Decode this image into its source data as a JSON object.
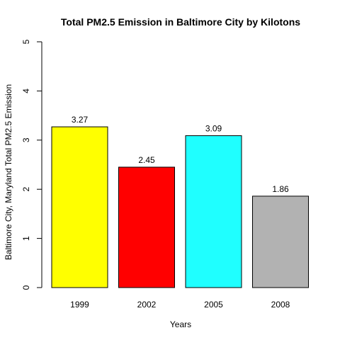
{
  "chart_data": {
    "type": "bar",
    "title": "Total PM2.5 Emission in Baltimore City by Kilotons",
    "xlabel": "Years",
    "ylabel": "Baltimore City, Maryland Total PM2.5 Emission",
    "categories": [
      "1999",
      "2002",
      "2005",
      "2008"
    ],
    "values": [
      3.27,
      2.45,
      3.09,
      1.86
    ],
    "data_labels": [
      "3.27",
      "2.45",
      "3.09",
      "1.86"
    ],
    "colors": [
      "#ffff00",
      "#ff0000",
      "#1fffff",
      "#b2b2b2"
    ],
    "ylim": [
      0,
      5
    ],
    "yticks": [
      0,
      1,
      2,
      3,
      4,
      5
    ],
    "grid": false,
    "legend": "none"
  }
}
